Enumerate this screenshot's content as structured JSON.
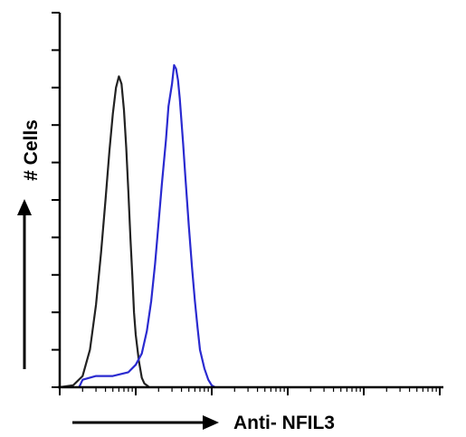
{
  "chart_data": {
    "type": "histogram-overlay",
    "xlabel": "Anti- NFIL3",
    "ylabel": "# Cells",
    "xscale": "log",
    "xlim": [
      1,
      100000
    ],
    "ylim": [
      0,
      10
    ],
    "y_major_tick_count": 10,
    "grid": false,
    "series": [
      {
        "color": "#222222",
        "points": [
          [
            1.0,
            0.0
          ],
          [
            1.5,
            0.05
          ],
          [
            2.0,
            0.3
          ],
          [
            2.5,
            1.0
          ],
          [
            3.0,
            2.2
          ],
          [
            3.5,
            3.6
          ],
          [
            4.0,
            5.0
          ],
          [
            4.5,
            6.3
          ],
          [
            5.0,
            7.3
          ],
          [
            5.5,
            8.0
          ],
          [
            6.0,
            8.3
          ],
          [
            6.5,
            8.1
          ],
          [
            7.0,
            7.4
          ],
          [
            7.5,
            6.4
          ],
          [
            8.0,
            5.2
          ],
          [
            8.5,
            4.0
          ],
          [
            9.0,
            3.0
          ],
          [
            9.5,
            2.0
          ],
          [
            10.0,
            1.4
          ],
          [
            11.0,
            0.7
          ],
          [
            12.0,
            0.25
          ],
          [
            13.0,
            0.1
          ],
          [
            14.0,
            0.05
          ],
          [
            15.0,
            0.0
          ]
        ]
      },
      {
        "color": "#2a2ad0",
        "points": [
          [
            1.8,
            0.0
          ],
          [
            2.0,
            0.2
          ],
          [
            3.0,
            0.3
          ],
          [
            5.0,
            0.3
          ],
          [
            8.0,
            0.4
          ],
          [
            10.0,
            0.6
          ],
          [
            12.0,
            0.9
          ],
          [
            14.0,
            1.5
          ],
          [
            16.0,
            2.3
          ],
          [
            18.0,
            3.3
          ],
          [
            20.0,
            4.4
          ],
          [
            22.0,
            5.4
          ],
          [
            25.0,
            6.6
          ],
          [
            27.0,
            7.5
          ],
          [
            30.0,
            8.1
          ],
          [
            32.0,
            8.6
          ],
          [
            34.0,
            8.5
          ],
          [
            36.0,
            8.2
          ],
          [
            38.0,
            7.7
          ],
          [
            42.0,
            6.5
          ],
          [
            45.0,
            5.6
          ],
          [
            50.0,
            4.3
          ],
          [
            55.0,
            3.2
          ],
          [
            60.0,
            2.3
          ],
          [
            65.0,
            1.6
          ],
          [
            70.0,
            1.0
          ],
          [
            80.0,
            0.5
          ],
          [
            90.0,
            0.2
          ],
          [
            100.0,
            0.05
          ],
          [
            110.0,
            0.0
          ]
        ]
      }
    ]
  }
}
